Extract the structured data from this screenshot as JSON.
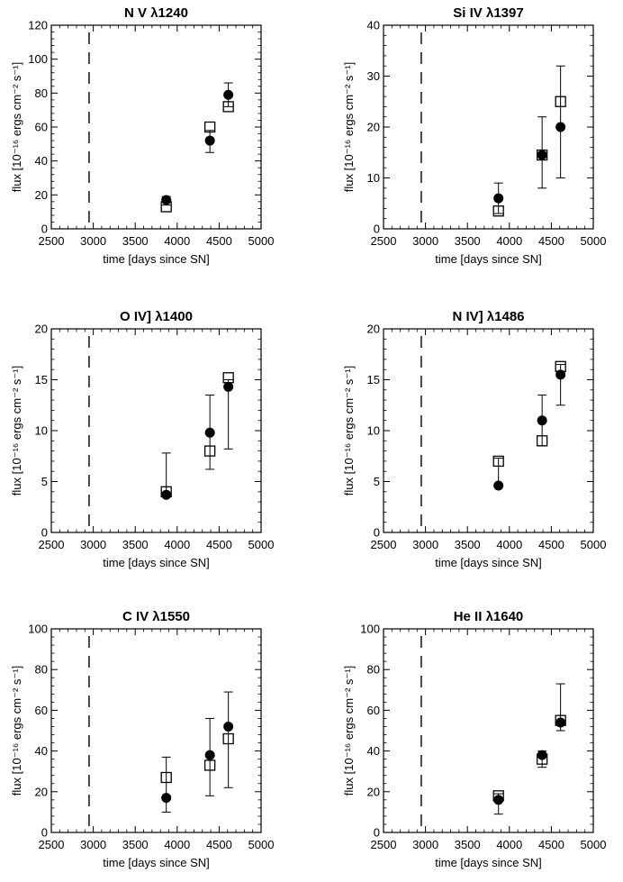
{
  "chart_data": [
    {
      "type": "scatter",
      "title": "N V λ1240",
      "xlabel": "time [days since SN]",
      "ylabel": "flux [10⁻¹⁶ ergs cm⁻² s⁻¹]",
      "xlim": [
        2500,
        5000
      ],
      "ylim": [
        0,
        120
      ],
      "xticks": [
        2500,
        3000,
        3500,
        4000,
        4500,
        5000
      ],
      "yticks": [
        0,
        20,
        40,
        60,
        80,
        100,
        120
      ],
      "reference_line_x": 2950,
      "series": [
        {
          "name": "filled circles",
          "marker": "filled-circle",
          "points": [
            {
              "x": 3870,
              "y": 17,
              "err_lo": 14,
              "err_hi": 19
            },
            {
              "x": 4390,
              "y": 52,
              "err_lo": 45,
              "err_hi": 58
            },
            {
              "x": 4610,
              "y": 79,
              "err_lo": 72,
              "err_hi": 86
            }
          ]
        },
        {
          "name": "open squares",
          "marker": "open-square",
          "points": [
            {
              "x": 3870,
              "y": 13
            },
            {
              "x": 4390,
              "y": 60
            },
            {
              "x": 4610,
              "y": 72
            }
          ]
        }
      ]
    },
    {
      "type": "scatter",
      "title": "Si IV λ1397",
      "xlabel": "time [days since SN]",
      "ylabel": "flux [10⁻¹⁶ ergs cm⁻² s⁻¹]",
      "xlim": [
        2500,
        5000
      ],
      "ylim": [
        0,
        40
      ],
      "xticks": [
        2500,
        3000,
        3500,
        4000,
        4500,
        5000
      ],
      "yticks": [
        0,
        10,
        20,
        30,
        40
      ],
      "reference_line_x": 2950,
      "series": [
        {
          "name": "filled circles",
          "marker": "filled-circle",
          "points": [
            {
              "x": 3870,
              "y": 6,
              "err_lo": 3,
              "err_hi": 9
            },
            {
              "x": 4390,
              "y": 14.5,
              "err_lo": 8,
              "err_hi": 22
            },
            {
              "x": 4610,
              "y": 20,
              "err_lo": 10,
              "err_hi": 32
            }
          ]
        },
        {
          "name": "open squares",
          "marker": "open-square",
          "points": [
            {
              "x": 3870,
              "y": 3.5
            },
            {
              "x": 4390,
              "y": 14.5
            },
            {
              "x": 4610,
              "y": 25
            }
          ]
        }
      ]
    },
    {
      "type": "scatter",
      "title": "O IV] λ1400",
      "xlabel": "time [days since SN]",
      "ylabel": "flux [10⁻¹⁶ ergs cm⁻² s⁻¹]",
      "xlim": [
        2500,
        5000
      ],
      "ylim": [
        0,
        20
      ],
      "xticks": [
        2500,
        3000,
        3500,
        4000,
        4500,
        5000
      ],
      "yticks": [
        0,
        5,
        10,
        15,
        20
      ],
      "reference_line_x": 2950,
      "series": [
        {
          "name": "filled circles",
          "marker": "filled-circle",
          "points": [
            {
              "x": 3870,
              "y": 3.7,
              "err_lo": 3.5,
              "err_hi": 7.8
            },
            {
              "x": 4390,
              "y": 9.8,
              "err_lo": 6.2,
              "err_hi": 13.5
            },
            {
              "x": 4610,
              "y": 14.3,
              "err_lo": 8.2,
              "err_hi": 15
            }
          ]
        },
        {
          "name": "open squares",
          "marker": "open-square",
          "points": [
            {
              "x": 3870,
              "y": 4
            },
            {
              "x": 4390,
              "y": 8
            },
            {
              "x": 4610,
              "y": 15.2
            }
          ]
        }
      ]
    },
    {
      "type": "scatter",
      "title": "N IV] λ1486",
      "xlabel": "time [days since SN]",
      "ylabel": "flux [10⁻¹⁶ ergs cm⁻² s⁻¹]",
      "xlim": [
        2500,
        5000
      ],
      "ylim": [
        0,
        20
      ],
      "xticks": [
        2500,
        3000,
        3500,
        4000,
        4500,
        5000
      ],
      "yticks": [
        0,
        5,
        10,
        15,
        20
      ],
      "reference_line_x": 2950,
      "series": [
        {
          "name": "filled circles",
          "marker": "filled-circle",
          "points": [
            {
              "x": 3870,
              "y": 4.6,
              "err_lo": 4.6,
              "err_hi": 7.3
            },
            {
              "x": 4390,
              "y": 11,
              "err_lo": 8.5,
              "err_hi": 13.5
            },
            {
              "x": 4610,
              "y": 15.5,
              "err_lo": 12.5,
              "err_hi": 16.5
            }
          ]
        },
        {
          "name": "open squares",
          "marker": "open-square",
          "points": [
            {
              "x": 3870,
              "y": 7
            },
            {
              "x": 4390,
              "y": 9
            },
            {
              "x": 4610,
              "y": 16.3
            }
          ]
        }
      ]
    },
    {
      "type": "scatter",
      "title": "C IV λ1550",
      "xlabel": "time [days since SN]",
      "ylabel": "flux [10⁻¹⁶ ergs cm⁻² s⁻¹]",
      "xlim": [
        2500,
        5000
      ],
      "ylim": [
        0,
        100
      ],
      "xticks": [
        2500,
        3000,
        3500,
        4000,
        4500,
        5000
      ],
      "yticks": [
        0,
        20,
        40,
        60,
        80,
        100
      ],
      "reference_line_x": 2950,
      "series": [
        {
          "name": "filled circles",
          "marker": "filled-circle",
          "points": [
            {
              "x": 3870,
              "y": 17,
              "err_lo": 10,
              "err_hi": 37
            },
            {
              "x": 4390,
              "y": 38,
              "err_lo": 18,
              "err_hi": 56
            },
            {
              "x": 4610,
              "y": 52,
              "err_lo": 22,
              "err_hi": 69
            }
          ]
        },
        {
          "name": "open squares",
          "marker": "open-square",
          "points": [
            {
              "x": 3870,
              "y": 27
            },
            {
              "x": 4390,
              "y": 33
            },
            {
              "x": 4610,
              "y": 46
            }
          ]
        }
      ]
    },
    {
      "type": "scatter",
      "title": "He II λ1640",
      "xlabel": "time [days since SN]",
      "ylabel": "flux [10⁻¹⁶ ergs cm⁻² s⁻¹]",
      "xlim": [
        2500,
        5000
      ],
      "ylim": [
        0,
        100
      ],
      "xticks": [
        2500,
        3000,
        3500,
        4000,
        4500,
        5000
      ],
      "yticks": [
        0,
        20,
        40,
        60,
        80,
        100
      ],
      "reference_line_x": 2950,
      "series": [
        {
          "name": "filled circles",
          "marker": "filled-circle",
          "points": [
            {
              "x": 3870,
              "y": 16,
              "err_lo": 9,
              "err_hi": 19
            },
            {
              "x": 4390,
              "y": 38,
              "err_lo": 32,
              "err_hi": 40
            },
            {
              "x": 4610,
              "y": 54,
              "err_lo": 50,
              "err_hi": 73
            }
          ]
        },
        {
          "name": "open squares",
          "marker": "open-square",
          "points": [
            {
              "x": 3870,
              "y": 18
            },
            {
              "x": 4390,
              "y": 36
            },
            {
              "x": 4610,
              "y": 55
            }
          ]
        }
      ]
    }
  ]
}
